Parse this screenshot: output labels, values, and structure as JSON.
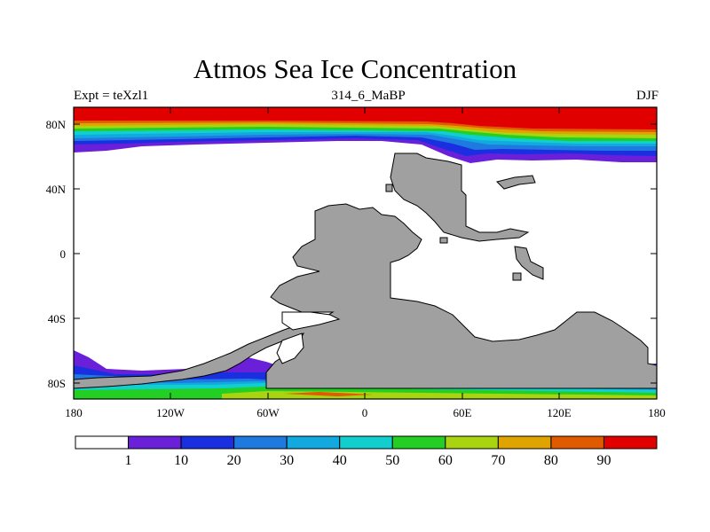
{
  "title": "Atmos Sea Ice Concentration",
  "subtitle_left": "Expt = teXzl1",
  "subtitle_center": "314_6_MaBP",
  "subtitle_right": "DJF",
  "lon_ticks": [
    "180",
    "120W",
    "60W",
    "0",
    "60E",
    "120E",
    "180"
  ],
  "lat_ticks": [
    "80N",
    "40N",
    "0",
    "40S",
    "80S"
  ],
  "colorbar": {
    "labels": [
      "1",
      "10",
      "20",
      "30",
      "40",
      "50",
      "60",
      "70",
      "80",
      "90"
    ],
    "colors": [
      "#ffffff",
      "#6a1fd8",
      "#1a2fe0",
      "#1f7ae0",
      "#12a8e0",
      "#12cfcf",
      "#22cf22",
      "#a8d410",
      "#e0a400",
      "#e05a00",
      "#e00000"
    ]
  },
  "land_color": "#a0a0a0"
}
